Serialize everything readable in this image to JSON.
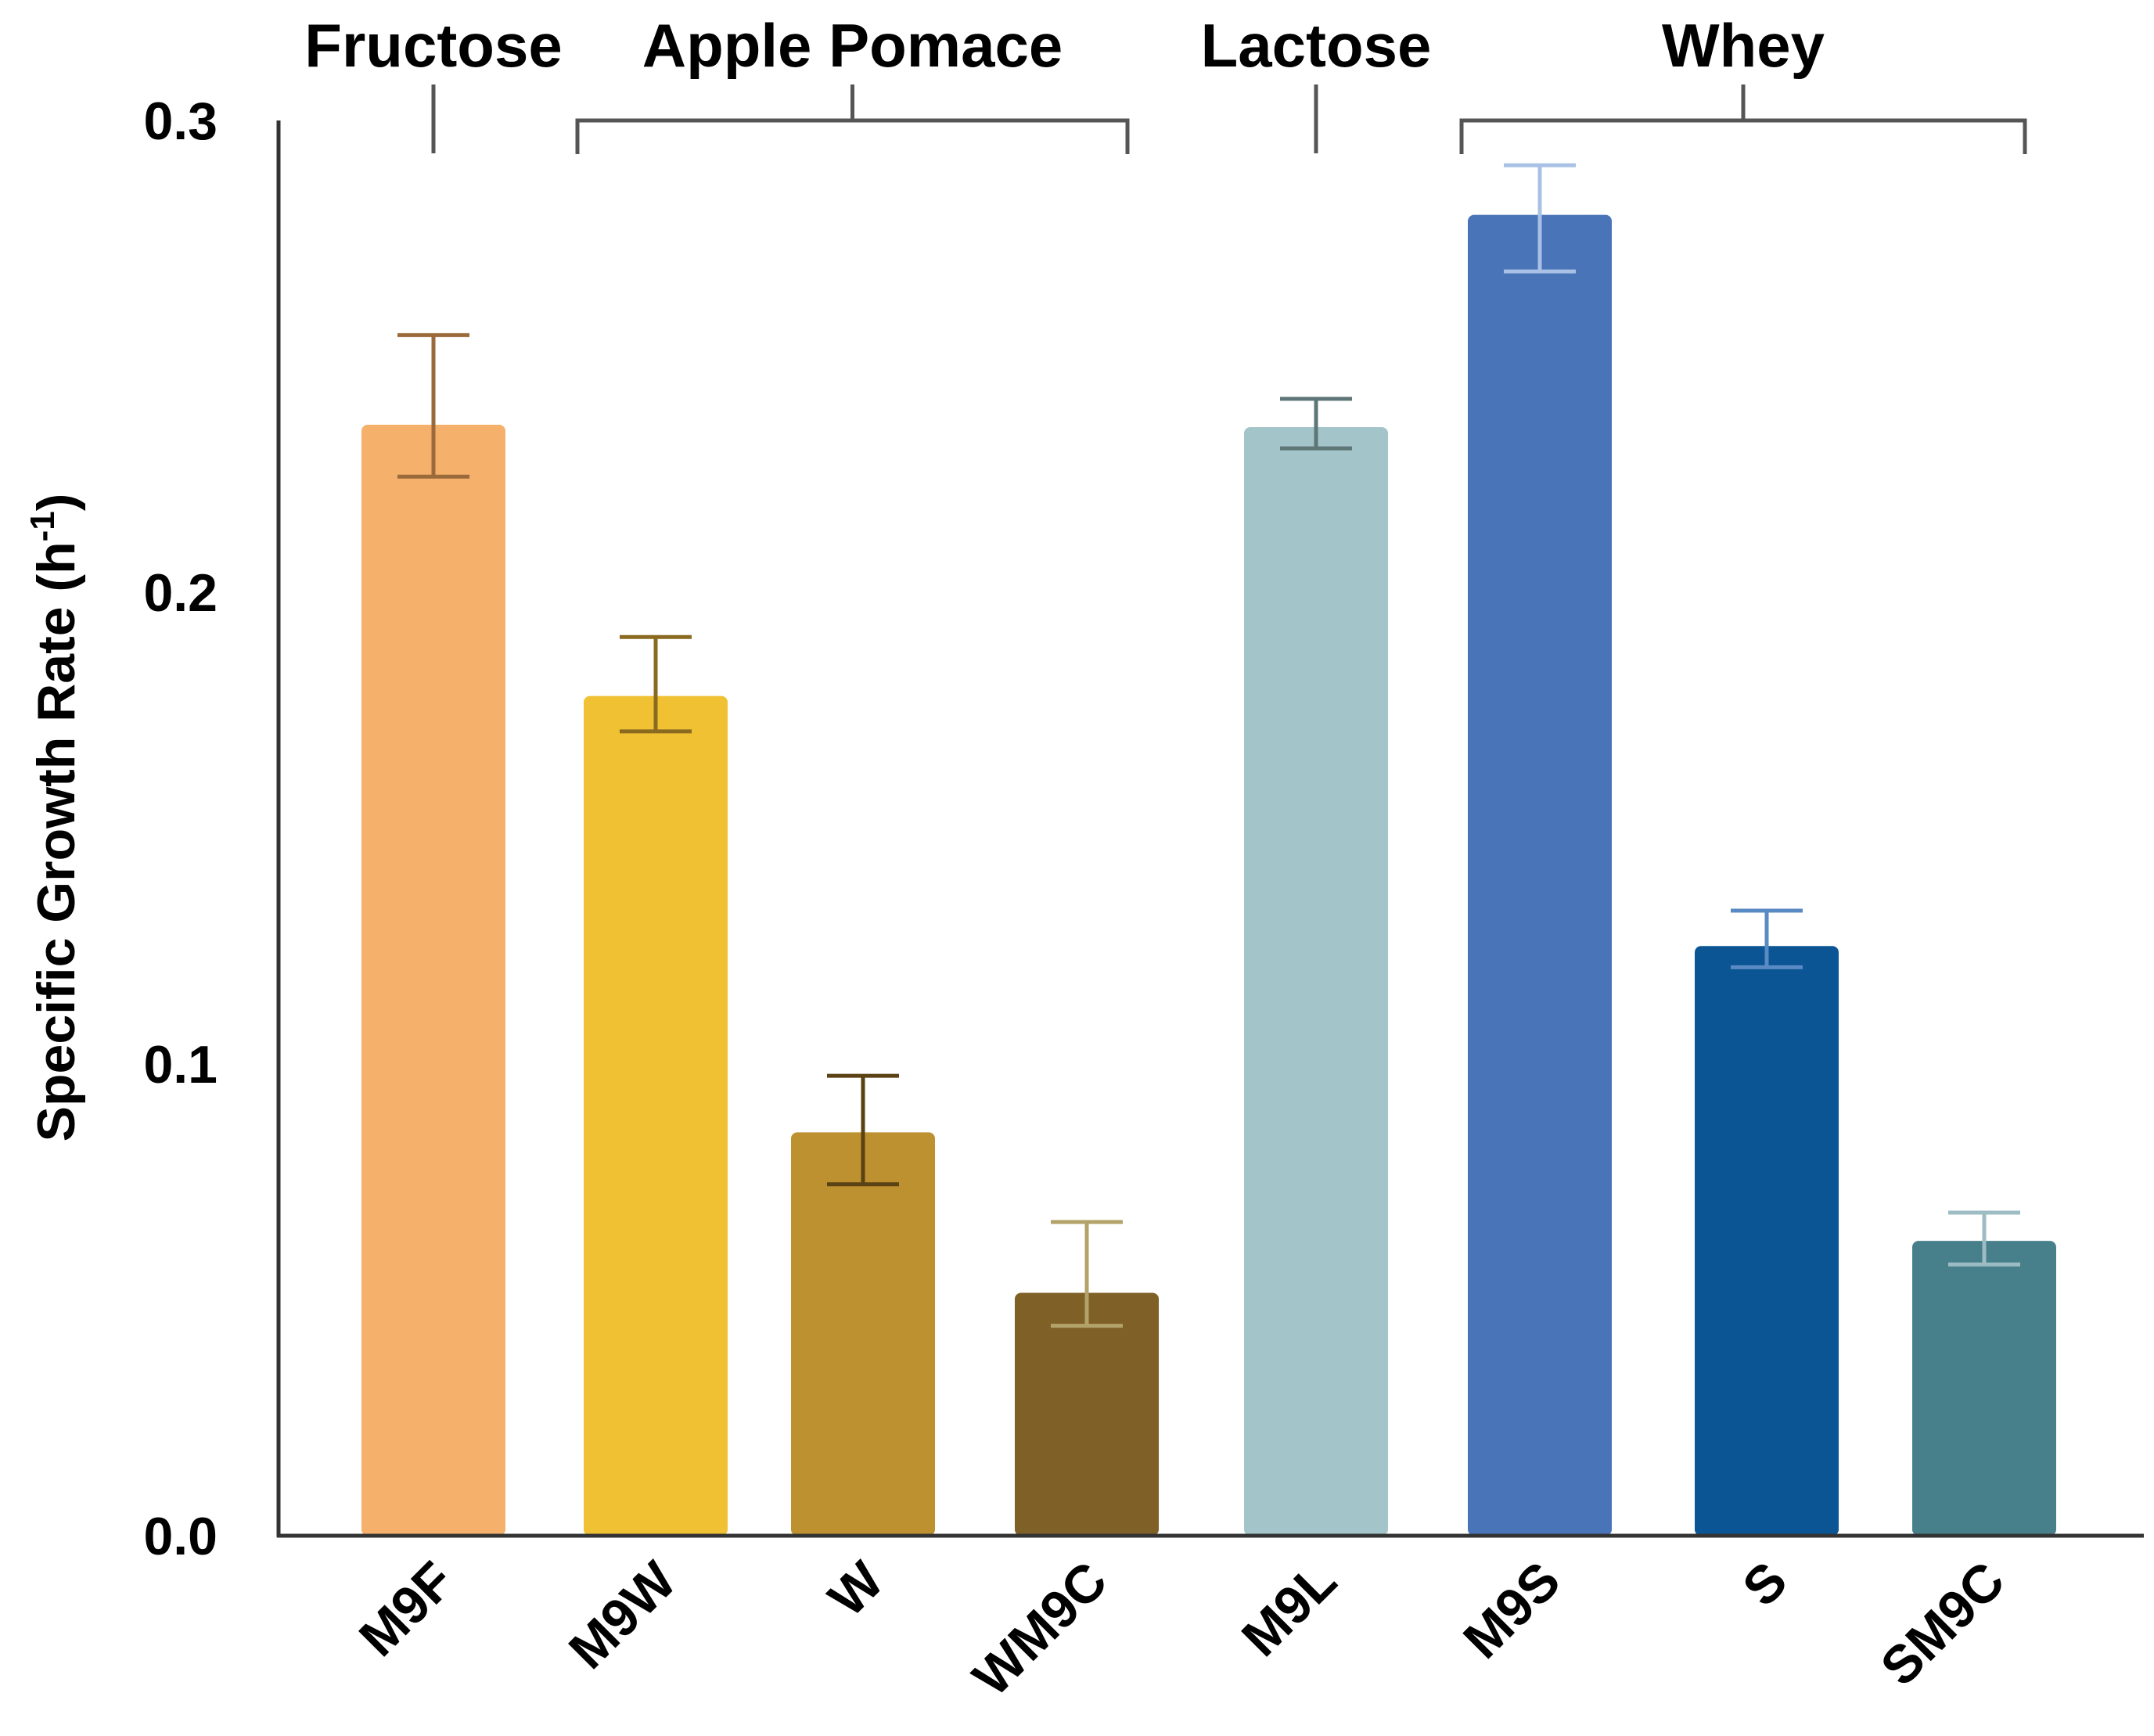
{
  "chart_data": {
    "type": "bar",
    "title": "",
    "xlabel": "",
    "ylabel": "Specific Growth Rate (h",
    "ylabel_superscript": "-1",
    "ylabel_close": ")",
    "ylim": [
      0,
      0.3
    ],
    "yticks": [
      {
        "value": 0,
        "label": "0.0"
      },
      {
        "value": 0.1,
        "label": "0.1"
      },
      {
        "value": 0.2,
        "label": "0.2"
      },
      {
        "value": 0.3,
        "label": "0.3"
      }
    ],
    "grid": false,
    "categories": [
      "M9F",
      "M9W",
      "W",
      "WM9C",
      "M9L",
      "M9S",
      "S",
      "SM9C"
    ],
    "values": [
      0.2355,
      0.178,
      0.0855,
      0.0515,
      0.235,
      0.28,
      0.125,
      0.0625
    ],
    "error_low": [
      0.2245,
      0.1705,
      0.0745,
      0.0445,
      0.2305,
      0.268,
      0.1205,
      0.0575
    ],
    "error_high": [
      0.2545,
      0.1905,
      0.0975,
      0.0665,
      0.241,
      0.2905,
      0.1325,
      0.0685
    ],
    "bar_colors": [
      "#f5b06b",
      "#f0c132",
      "#bd9030",
      "#7f6026",
      "#a3c4c8",
      "#4a74b8",
      "#0b5594",
      "#47808a"
    ],
    "error_colors": [
      "#9a6a3a",
      "#8a6a20",
      "#5a4214",
      "#b3a36a",
      "#5e7678",
      "#a9c1e4",
      "#5a8ac4",
      "#9dbcc4"
    ],
    "groups": [
      {
        "label": "Fructose",
        "members": [
          "M9F"
        ]
      },
      {
        "label": "Apple Pomace",
        "members": [
          "M9W",
          "W",
          "WM9C"
        ]
      },
      {
        "label": "Lactose",
        "members": [
          "M9L"
        ]
      },
      {
        "label": "Whey",
        "members": [
          "M9S",
          "S",
          "SM9C"
        ]
      }
    ]
  }
}
